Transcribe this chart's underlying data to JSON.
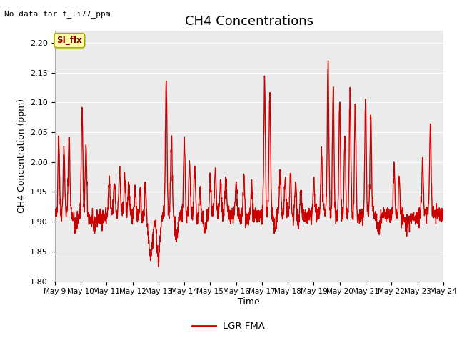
{
  "title": "CH4 Concentrations",
  "xlabel": "Time",
  "ylabel": "CH4 Concentration (ppm)",
  "top_left_text": "No data for f_li77_ppm",
  "ylim": [
    1.8,
    2.22
  ],
  "yticks": [
    1.8,
    1.85,
    1.9,
    1.95,
    2.0,
    2.05,
    2.1,
    2.15,
    2.2
  ],
  "xtick_labels": [
    "May 9",
    "May 10",
    "May 11",
    "May 12",
    "May 13",
    "May 14",
    "May 15",
    "May 16",
    "May 17",
    "May 18",
    "May 19",
    "May 20",
    "May 21",
    "May 22",
    "May 23",
    "May 24"
  ],
  "line_color": "#cc0000",
  "line_width": 1.0,
  "legend_label": "LGR FMA",
  "fig_bg_color": "#ffffff",
  "plot_bg_color": "#ebebeb",
  "grid_color": "#ffffff",
  "SI_flx_box_color": "#ffffaa",
  "SI_flx_text_color": "#8b0000",
  "title_fontsize": 13,
  "label_fontsize": 9,
  "tick_fontsize": 8
}
